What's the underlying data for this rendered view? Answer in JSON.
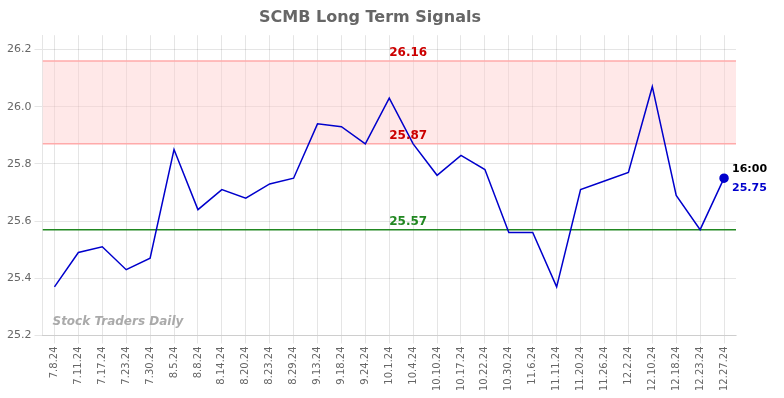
{
  "chart_data": {
    "type": "line",
    "title": "SCMB Long Term Signals",
    "categories": [
      "7.8.24",
      "7.11.24",
      "7.17.24",
      "7.23.24",
      "7.30.24",
      "8.5.24",
      "8.8.24",
      "8.14.24",
      "8.20.24",
      "8.23.24",
      "8.29.24",
      "9.13.24",
      "9.18.24",
      "9.24.24",
      "10.1.24",
      "10.4.24",
      "10.10.24",
      "10.17.24",
      "10.22.24",
      "10.30.24",
      "11.6.24",
      "11.11.24",
      "11.20.24",
      "11.26.24",
      "12.2.24",
      "12.10.24",
      "12.18.24",
      "12.23.24",
      "12.27.24"
    ],
    "values": [
      25.37,
      25.49,
      25.51,
      25.43,
      25.47,
      25.85,
      25.64,
      25.71,
      25.68,
      25.73,
      25.75,
      25.94,
      25.93,
      25.87,
      26.03,
      25.87,
      25.76,
      25.83,
      25.78,
      25.56,
      25.56,
      25.37,
      25.71,
      25.74,
      25.77,
      26.07,
      25.69,
      25.57,
      25.75
    ],
    "color": "#0000cc",
    "ylim": [
      25.2,
      26.25
    ],
    "yticks": [
      25.2,
      25.4,
      25.6,
      25.8,
      {
        "value": 26.0,
        "label": "26.0"
      },
      26.2
    ],
    "grid": true,
    "band": {
      "from": 25.87,
      "to": 26.16,
      "color": "#ffcccc"
    },
    "reference_lines": [
      {
        "y": 26.16,
        "color": "#ffaaaa",
        "label": "26.16",
        "label_color": "#cc0000"
      },
      {
        "y": 25.87,
        "color": "#ffaaaa",
        "label": "25.87",
        "label_color": "#cc0000"
      },
      {
        "y": 25.57,
        "color": "#228822",
        "label": "25.57",
        "label_color": "#228822"
      }
    ],
    "last_point": {
      "marker": "circle",
      "labels": [
        {
          "text": "16:00",
          "color": "#000000"
        },
        {
          "text": "25.75",
          "color": "#0000cc"
        }
      ]
    },
    "watermark": "Stock Traders Daily"
  }
}
